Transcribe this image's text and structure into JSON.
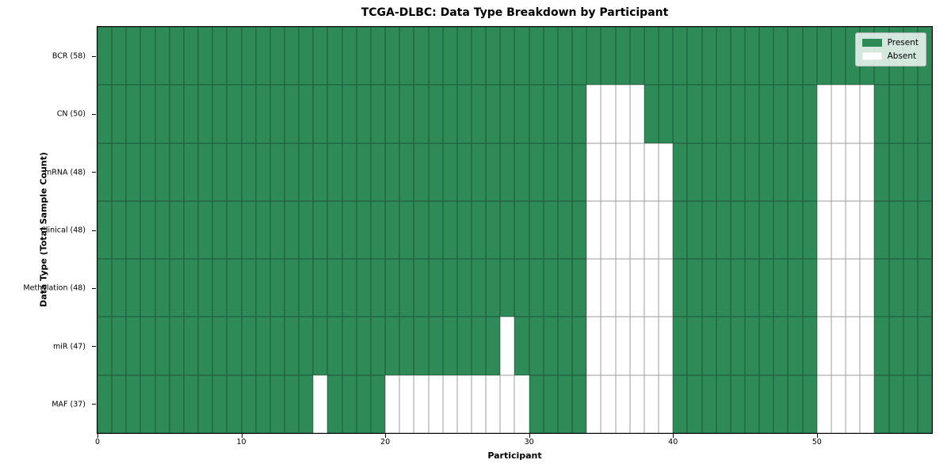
{
  "title": "TCGA-DLBC: Data Type Breakdown by Participant",
  "xlabel": "Participant",
  "ylabel": "Data Type (Total Sample Count)",
  "legend": {
    "present_label": "Present",
    "absent_label": "Absent"
  },
  "colors": {
    "present": "#2e8b57",
    "absent": "#ffffff"
  },
  "chart_data": {
    "type": "heatmap",
    "title": "TCGA-DLBC: Data Type Breakdown by Participant",
    "xlabel": "Participant",
    "ylabel": "Data Type (Total Sample Count)",
    "n_participants": 58,
    "x_ticks": [
      0,
      10,
      20,
      30,
      40,
      50
    ],
    "legend_entries": [
      "Present",
      "Absent"
    ],
    "legend_position": "upper right",
    "grid": true,
    "rows": [
      {
        "label": "BCR (58)",
        "data_type": "BCR",
        "total_samples": 58,
        "absent_participants": []
      },
      {
        "label": "CN (50)",
        "data_type": "CN",
        "total_samples": 50,
        "absent_participants": [
          34,
          35,
          36,
          37,
          50,
          51,
          52,
          53
        ]
      },
      {
        "label": "mRNA (48)",
        "data_type": "mRNA",
        "total_samples": 48,
        "absent_participants": [
          34,
          35,
          36,
          37,
          38,
          39,
          50,
          51,
          52,
          53
        ]
      },
      {
        "label": "Clinical (48)",
        "data_type": "Clinical",
        "total_samples": 48,
        "absent_participants": [
          34,
          35,
          36,
          37,
          38,
          39,
          50,
          51,
          52,
          53
        ]
      },
      {
        "label": "Methylation (48)",
        "data_type": "Methylation",
        "total_samples": 48,
        "absent_participants": [
          34,
          35,
          36,
          37,
          38,
          39,
          50,
          51,
          52,
          53
        ]
      },
      {
        "label": "miR (47)",
        "data_type": "miR",
        "total_samples": 47,
        "absent_participants": [
          28,
          34,
          35,
          36,
          37,
          38,
          39,
          50,
          51,
          52,
          53
        ]
      },
      {
        "label": "MAF (37)",
        "data_type": "MAF",
        "total_samples": 37,
        "absent_participants": [
          15,
          20,
          21,
          22,
          23,
          24,
          25,
          26,
          27,
          28,
          29,
          34,
          35,
          36,
          37,
          38,
          39,
          50,
          51,
          52,
          53
        ]
      }
    ]
  }
}
